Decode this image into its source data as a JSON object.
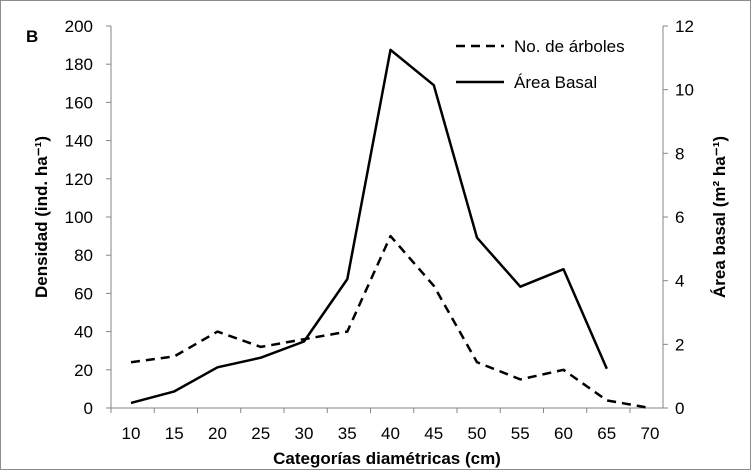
{
  "chart_data": {
    "type": "line",
    "panel_label": "B",
    "xlabel": "Categorías diamétricas (cm)",
    "ylabel_left": "Densidad (ind. ha⁻¹)",
    "ylabel_right": "Área basal (m² ha⁻¹)",
    "x": [
      10,
      15,
      20,
      25,
      30,
      35,
      40,
      45,
      50,
      55,
      60,
      65,
      70
    ],
    "ylim_left": [
      0,
      200
    ],
    "ylim_right": [
      0,
      12
    ],
    "yticks_left": [
      0,
      20,
      40,
      60,
      80,
      100,
      120,
      140,
      160,
      180,
      200
    ],
    "yticks_right": [
      0,
      2,
      4,
      6,
      8,
      10,
      12
    ],
    "grid": false,
    "legend_position": "top-right",
    "series": [
      {
        "name": "No. de árboles",
        "axis": "left",
        "style": "dashed",
        "color": "#000000",
        "values": [
          24,
          27,
          40,
          32,
          36,
          40,
          90,
          64,
          24,
          15,
          20,
          4,
          0
        ]
      },
      {
        "name": "Área Basal",
        "axis": "right",
        "style": "solid",
        "color": "#000000",
        "values": [
          0.16,
          0.52,
          1.28,
          1.58,
          2.09,
          4.05,
          11.25,
          10.14,
          5.35,
          3.81,
          4.36,
          1.23,
          null
        ]
      }
    ]
  }
}
